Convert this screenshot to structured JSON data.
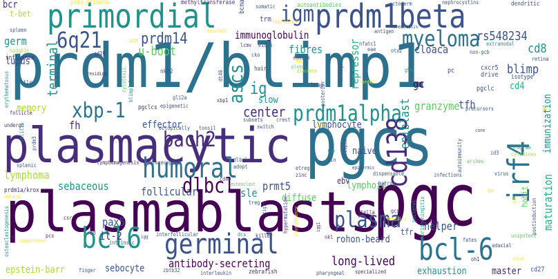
{
  "palette": {
    "dark_purple": "#440154",
    "indigo": "#472d7b",
    "blue": "#3b528b",
    "slate": "#2c728e",
    "teal": "#21918c",
    "green_teal": "#28ae80",
    "green": "#5ec962",
    "lime": "#addc30",
    "yellow": "#fde725"
  },
  "words": [
    {
      "text": "prdm1/blimp1",
      "color": "#2c728e"
    },
    {
      "text": "plasmablasts",
      "color": "#440154"
    },
    {
      "text": "pgcs",
      "color": "#2c728e"
    },
    {
      "text": "plasmacytic",
      "color": "#472d7b"
    },
    {
      "text": "pgc",
      "color": "#440154"
    },
    {
      "text": "primordial",
      "color": "#21918c"
    },
    {
      "text": "prdm1beta",
      "color": "#3b528b"
    },
    {
      "text": "germinal",
      "color": "#3b528b"
    },
    {
      "text": "bcl6",
      "color": "#21918c"
    },
    {
      "text": "bcl-6",
      "color": "#2c728e"
    },
    {
      "text": "humoral",
      "color": "#2c728e"
    },
    {
      "text": "bach2",
      "color": "#472d7b"
    },
    {
      "text": "prdm1alpha",
      "color": "#21918c"
    },
    {
      "text": "myeloma",
      "color": "#2c728e"
    },
    {
      "text": "irf4",
      "color": "#2c728e"
    },
    {
      "text": "cd138",
      "color": "#472d7b"
    },
    {
      "text": "xbp-1",
      "color": "#2c728e"
    },
    {
      "text": "plasma",
      "color": "#3b528b"
    },
    {
      "text": "dlbcl",
      "color": "#440154"
    },
    {
      "text": "6q21",
      "color": "#3b528b"
    },
    {
      "text": "igm",
      "color": "#3b528b"
    },
    {
      "text": "ascs",
      "color": "#21918c"
    },
    {
      "text": "prdm14",
      "color": "#3b528b"
    },
    {
      "text": "rs548234",
      "color": "#3b528b"
    },
    {
      "text": "blimp",
      "color": "#3b528b"
    },
    {
      "text": "ig",
      "color": "#21918c"
    },
    {
      "text": "cd8",
      "color": "#21918c"
    },
    {
      "text": "germ",
      "color": "#21918c"
    },
    {
      "text": "immunoglobulin",
      "color": "#440154"
    },
    {
      "text": "u-boot",
      "color": "#5ec962"
    },
    {
      "text": "terminal",
      "color": "#21918c"
    },
    {
      "text": "repressor",
      "color": "#28ae80"
    },
    {
      "text": "fibres",
      "color": "#21918c"
    },
    {
      "text": "cloaca",
      "color": "#3b528b"
    },
    {
      "text": "epiblast",
      "color": "#21918c"
    },
    {
      "text": "gc",
      "color": "#440154"
    },
    {
      "text": "cd4",
      "color": "#28ae80"
    },
    {
      "text": "maturation",
      "color": "#28ae80"
    },
    {
      "text": "immunization",
      "color": "#21918c"
    },
    {
      "text": "lupus",
      "color": "#3b528b"
    },
    {
      "text": "memory",
      "color": "#addc30"
    },
    {
      "text": "center",
      "color": "#472d7b"
    },
    {
      "text": "fh",
      "color": "#472d7b"
    },
    {
      "text": "granzyme",
      "color": "#5ec962"
    },
    {
      "text": "tfh",
      "color": "#3b528b"
    },
    {
      "text": "effector",
      "color": "#3b528b"
    },
    {
      "text": "lymphocyte",
      "color": "#3b528b"
    },
    {
      "text": "lymphoma",
      "color": "#addc30"
    },
    {
      "text": "slow",
      "color": "#21918c"
    },
    {
      "text": "sle",
      "color": "#21918c"
    },
    {
      "text": "naive",
      "color": "#3b528b"
    },
    {
      "text": "sebaceous",
      "color": "#21918c"
    },
    {
      "text": "follicular",
      "color": "#3b528b"
    },
    {
      "text": "prmt5",
      "color": "#3b528b"
    },
    {
      "text": "diffuse",
      "color": "#5ec962"
    },
    {
      "text": "lymphoid",
      "color": "#5ec962"
    },
    {
      "text": "ebv",
      "color": "#472d7b"
    },
    {
      "text": "pax5",
      "color": "#3b528b"
    },
    {
      "text": "il-2",
      "color": "#472d7b"
    },
    {
      "text": "helper",
      "color": "#3b528b"
    },
    {
      "text": "tfr",
      "color": "#3b528b"
    },
    {
      "text": "rohon-beard",
      "color": "#3b528b"
    },
    {
      "text": "long-lived",
      "color": "#440154"
    },
    {
      "text": "antibody-secreting",
      "color": "#440154"
    },
    {
      "text": "sebocyte",
      "color": "#3b528b"
    },
    {
      "text": "epstein-barr",
      "color": "#addc30"
    },
    {
      "text": "exhaustion",
      "color": "#21918c"
    },
    {
      "text": "master",
      "color": "#472d7b"
    },
    {
      "text": "hobit",
      "color": "#5ec962"
    },
    {
      "text": "cd27",
      "color": "#3b528b"
    },
    {
      "text": "bcr",
      "color": "#472d7b"
    },
    {
      "text": "t-bet",
      "color": "#addc30"
    },
    {
      "text": "prdi-bf1beta",
      "color": "#fde725"
    },
    {
      "text": "methyltransferase",
      "color": "#472d7b"
    },
    {
      "text": "somatic",
      "color": "#3b528b"
    },
    {
      "text": "autoantibodies",
      "color": "#5ec962"
    },
    {
      "text": "ectoderm",
      "color": "#3b528b"
    },
    {
      "text": "nephrocystins",
      "color": "#3b528b"
    },
    {
      "text": "dendritic",
      "color": "#3b528b"
    },
    {
      "text": "trm",
      "color": "#3b528b"
    },
    {
      "text": "bcma",
      "color": "#3b528b"
    },
    {
      "text": "represses",
      "color": "#fde725"
    },
    {
      "text": "maintain",
      "color": "#fde725"
    },
    {
      "text": "antigen",
      "color": "#3b528b"
    },
    {
      "text": "homeostasis",
      "color": "#3b528b"
    },
    {
      "text": "extranodal",
      "color": "#21918c"
    },
    {
      "text": "hodgkin",
      "color": "#addc30"
    },
    {
      "text": "spleen",
      "color": "#3b528b"
    },
    {
      "text": "influenza",
      "color": "#472d7b"
    },
    {
      "text": "cd19",
      "color": "#472d7b"
    },
    {
      "text": "lcmv",
      "color": "#472d7b"
    },
    {
      "text": "e10.5",
      "color": "#3b528b"
    },
    {
      "text": "nfatc1",
      "color": "#3b528b"
    },
    {
      "text": "eae",
      "color": "#3b528b"
    },
    {
      "text": "otx2",
      "color": "#3b528b"
    },
    {
      "text": "non-gcb",
      "color": "#3b528b"
    },
    {
      "text": "retina",
      "color": "#3b528b"
    },
    {
      "text": "cko",
      "color": "#3b528b"
    },
    {
      "text": "somite",
      "color": "#3b528b"
    },
    {
      "text": "plate",
      "color": "#5ec962"
    },
    {
      "text": "placenta",
      "color": "#addc30"
    },
    {
      "text": "prdm2",
      "color": "#fde725"
    },
    {
      "text": "g9a",
      "color": "#21918c"
    },
    {
      "text": "pc",
      "color": "#3b528b"
    },
    {
      "text": "cxcr5",
      "color": "#3b528b"
    },
    {
      "text": "drive",
      "color": "#3b528b"
    },
    {
      "text": "isotype",
      "color": "#3b528b"
    },
    {
      "text": "pgclc",
      "color": "#3b528b"
    },
    {
      "text": "tlr",
      "color": "#472d7b"
    },
    {
      "text": "erythematosus",
      "color": "#21918c"
    },
    {
      "text": "cytotoxic",
      "color": "#5ec962"
    },
    {
      "text": "nk92",
      "color": "#3b528b"
    },
    {
      "text": "hair",
      "color": "#3b528b"
    },
    {
      "text": "bsap",
      "color": "#3b528b"
    },
    {
      "text": "lineages",
      "color": "#3b528b"
    },
    {
      "text": "dt40",
      "color": "#3b528b"
    },
    {
      "text": "posterior",
      "color": "#3b528b"
    },
    {
      "text": "residing",
      "color": "#472d7b"
    },
    {
      "text": "blimp1alpha",
      "color": "#21918c"
    },
    {
      "text": "pgclcs",
      "color": "#472d7b"
    },
    {
      "text": "epigenetic",
      "color": "#3b528b"
    },
    {
      "text": "xbp1",
      "color": "#472d7b"
    },
    {
      "text": "gli2a",
      "color": "#3b528b"
    },
    {
      "text": "follicle",
      "color": "#472d7b"
    },
    {
      "text": "undergo",
      "color": "#472d7b"
    },
    {
      "text": "colitis",
      "color": "#21918c"
    },
    {
      "text": "ectopically",
      "color": "#3b528b"
    },
    {
      "text": "tonsil",
      "color": "#3b528b"
    },
    {
      "text": "subsets",
      "color": "#3b528b"
    },
    {
      "text": "crest",
      "color": "#3b528b"
    },
    {
      "text": "switch",
      "color": "#3b528b"
    },
    {
      "text": "th17",
      "color": "#fde725"
    },
    {
      "text": "precursors",
      "color": "#3b528b"
    },
    {
      "text": "cone",
      "color": "#3b528b"
    },
    {
      "text": "prdm3",
      "color": "#3b528b"
    },
    {
      "text": "splenic",
      "color": "#3b528b"
    },
    {
      "text": "lymphomagenesis",
      "color": "#472d7b"
    },
    {
      "text": "photoreceptor",
      "color": "#3b528b"
    },
    {
      "text": "dlbcls",
      "color": "#3b528b"
    },
    {
      "text": "adopt",
      "color": "#3b528b"
    },
    {
      "text": "tcm",
      "color": "#21918c"
    },
    {
      "text": "fin",
      "color": "#3b528b"
    },
    {
      "text": "blimpko",
      "color": "#3b528b"
    },
    {
      "text": "epidermis",
      "color": "#3b528b"
    },
    {
      "text": "autoimmunity",
      "color": "#3b528b"
    },
    {
      "text": "id3",
      "color": "#3b528b"
    },
    {
      "text": "program",
      "color": "#28ae80"
    },
    {
      "text": "cytokines",
      "color": "#addc30"
    },
    {
      "text": "cd40",
      "color": "#472d7b"
    },
    {
      "text": "osteoclast",
      "color": "#5ec962"
    },
    {
      "text": "etreg",
      "color": "#3b528b"
    },
    {
      "text": "zinc",
      "color": "#472d7b"
    },
    {
      "text": "arches",
      "color": "#5ec962"
    },
    {
      "text": "virus",
      "color": "#3b528b"
    },
    {
      "text": "prdm1a/krox",
      "color": "#472d7b"
    },
    {
      "text": "natural",
      "color": "#fde725"
    },
    {
      "text": "dispensable",
      "color": "#3b528b"
    },
    {
      "text": "marrow",
      "color": "#3b528b"
    },
    {
      "text": "infections",
      "color": "#3b528b"
    },
    {
      "text": "treg",
      "color": "#3b528b"
    },
    {
      "text": "ga",
      "color": "#fde725"
    },
    {
      "text": "osteoclastogenesis",
      "color": "#21918c"
    },
    {
      "text": "csr",
      "color": "#472d7b"
    },
    {
      "text": "tigit",
      "color": "#3b528b"
    },
    {
      "text": "hypermutation",
      "color": "#472d7b"
    },
    {
      "text": "stella",
      "color": "#472d7b"
    },
    {
      "text": "gcs",
      "color": "#472d7b"
    },
    {
      "text": "heredity",
      "color": "#fde725"
    },
    {
      "text": "pectoral",
      "color": "#21918c"
    },
    {
      "text": "ab",
      "color": "#472d7b"
    },
    {
      "text": "pcs",
      "color": "#472d7b"
    },
    {
      "text": "rod",
      "color": "#472d7b"
    },
    {
      "text": "intrinsic",
      "color": "#3b528b"
    },
    {
      "text": "interfollicular",
      "color": "#3b528b"
    },
    {
      "text": "dcs",
      "color": "#21918c"
    },
    {
      "text": "killer",
      "color": "#472d7b"
    },
    {
      "text": "pluripotency",
      "color": "#fde725"
    },
    {
      "text": "igg1",
      "color": "#472d7b"
    },
    {
      "text": "nkl",
      "color": "#472d7b"
    },
    {
      "text": "chorioneningitis",
      "color": "#21918c"
    },
    {
      "text": "th1",
      "color": "#472d7b"
    },
    {
      "text": "unipotent",
      "color": "#5ec962"
    },
    {
      "text": "postinduction",
      "color": "#3b528b"
    },
    {
      "text": "adaxial",
      "color": "#3b528b"
    },
    {
      "text": "fates",
      "color": "#3b528b"
    },
    {
      "text": "viral",
      "color": "#fde725"
    },
    {
      "text": "oh1",
      "color": "#472d7b"
    },
    {
      "text": "compartment",
      "color": "#fde725"
    },
    {
      "text": "finger",
      "color": "#3b528b"
    },
    {
      "text": "zbtb32",
      "color": "#3b528b"
    },
    {
      "text": "interleukin",
      "color": "#3b528b"
    },
    {
      "text": "zebrafish",
      "color": "#472d7b"
    },
    {
      "text": "pharyngeal",
      "color": "#3b528b"
    },
    {
      "text": "specialized",
      "color": "#472d7b"
    },
    {
      "text": "i310",
      "color": "#fde725"
    },
    {
      "text": "igg",
      "color": "#3b528b"
    },
    {
      "text": "mhc",
      "color": "#fde725"
    },
    {
      "text": "dc",
      "color": "#addc30"
    },
    {
      "text": "pot",
      "color": "#fde725"
    }
  ]
}
